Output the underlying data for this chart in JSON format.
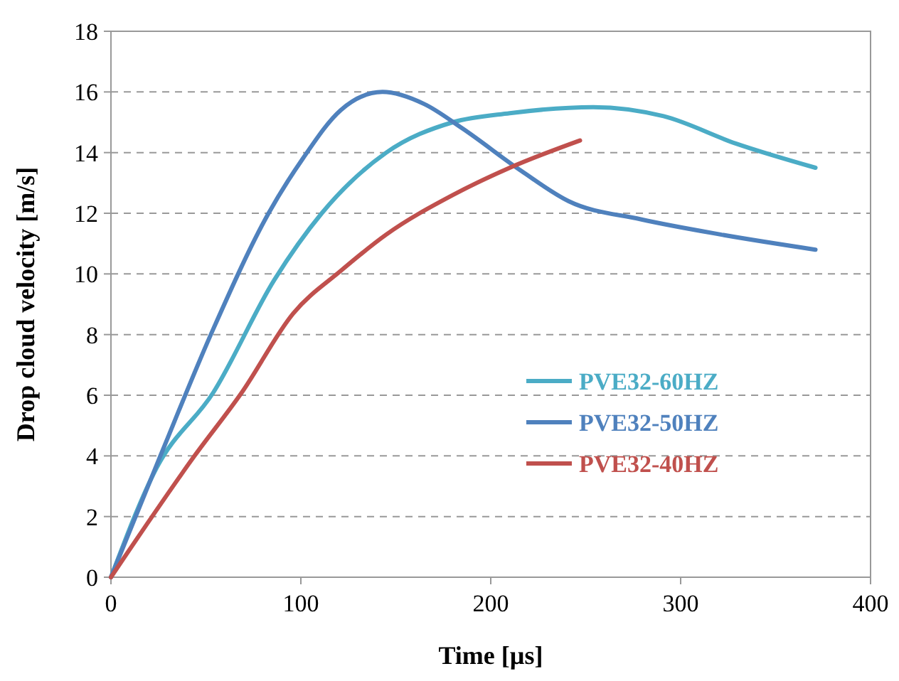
{
  "chart_data": {
    "type": "line",
    "xlabel": "Time [µs]",
    "ylabel": "Drop cloud velocity [m/s]",
    "xlim": [
      0,
      400
    ],
    "xticks": [
      0,
      100,
      200,
      300,
      400
    ],
    "ylim": [
      0,
      18
    ],
    "yticks": [
      0,
      2,
      4,
      6,
      8,
      10,
      12,
      14,
      16,
      18
    ],
    "grid": "y",
    "legend": "right",
    "marker": "none",
    "line_style": "solid",
    "series": [
      {
        "name": "PVE32-60HZ",
        "color": "#4bacc6",
        "x": [
          0,
          24,
          54,
          86,
          111,
          145,
          180,
          210,
          254,
          291,
          329,
          371
        ],
        "values": [
          0,
          3.6,
          6.1,
          9.8,
          12.0,
          14.0,
          15.0,
          15.3,
          15.5,
          15.2,
          14.3,
          13.5
        ]
      },
      {
        "name": "PVE32-50HZ",
        "color": "#4f81bd",
        "x": [
          0,
          26,
          54,
          83,
          101,
          121,
          143,
          165,
          185,
          216,
          241,
          279,
          321,
          371
        ],
        "values": [
          0,
          4.0,
          8.2,
          12.0,
          13.8,
          15.4,
          16.0,
          15.6,
          14.8,
          13.4,
          12.4,
          11.8,
          11.3,
          10.8
        ]
      },
      {
        "name": "PVE32-40HZ",
        "color": "#c0504d",
        "x": [
          0,
          44,
          69,
          96,
          121,
          145,
          180,
          210,
          247
        ],
        "values": [
          0,
          4.0,
          6.1,
          8.7,
          10.1,
          11.3,
          12.6,
          13.5,
          14.4
        ]
      }
    ]
  }
}
